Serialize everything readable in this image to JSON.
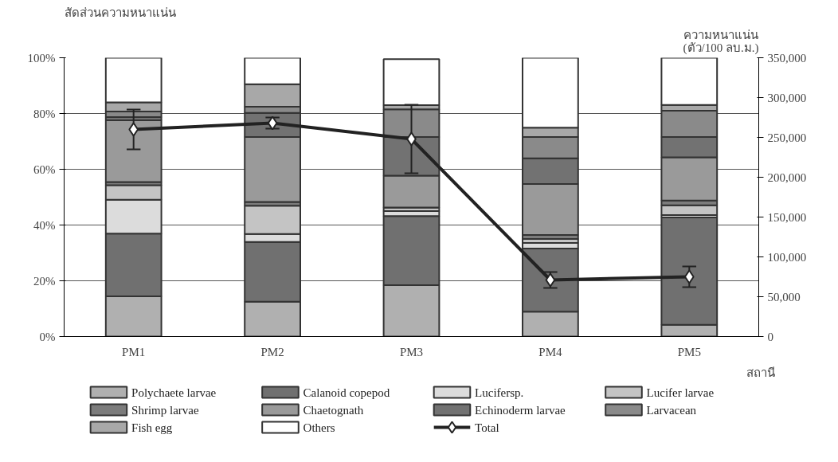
{
  "chart_data": {
    "type": "bar",
    "stacked": true,
    "categories": [
      "PM1",
      "PM2",
      "PM3",
      "PM4",
      "PM5"
    ],
    "ylabel": "สัดส่วนความหนาแน่น",
    "y2label": "ความหนาแน่น\n(ตัว/100 ลบ.ม.)",
    "xlabel": "สถานี",
    "ylim": [
      0,
      100
    ],
    "yticks": [
      {
        "value": 0,
        "label": "0%"
      },
      {
        "value": 20,
        "label": "20%"
      },
      {
        "value": 40,
        "label": "40%"
      },
      {
        "value": 60,
        "label": "60%"
      },
      {
        "value": 80,
        "label": "80%"
      },
      {
        "value": 100,
        "label": "100%"
      }
    ],
    "y2lim": [
      0,
      350000
    ],
    "y2ticks": [
      {
        "value": 0,
        "label": "0"
      },
      {
        "value": 50000,
        "label": "50,000"
      },
      {
        "value": 100000,
        "label": "100,000"
      },
      {
        "value": 150000,
        "label": "150,000"
      },
      {
        "value": 200000,
        "label": "200,000"
      },
      {
        "value": 250000,
        "label": "250,000"
      },
      {
        "value": 300000,
        "label": "300,000"
      },
      {
        "value": 350000,
        "label": "350,000"
      }
    ],
    "grid": "y",
    "legend": "bottom",
    "series": [
      {
        "name": "Polychaete larvae",
        "color": "#b0b0b0",
        "values": [
          14.4,
          12.5,
          18.4,
          8.9,
          4.2
        ]
      },
      {
        "name": "Calanoid copepod",
        "color": "#707070",
        "values": [
          22.5,
          21.4,
          24.8,
          22.7,
          38.5
        ]
      },
      {
        "name": "Lucifersp.",
        "color": "#dcdcdc",
        "values": [
          12.2,
          2.9,
          1.8,
          2.0,
          0.9
        ]
      },
      {
        "name": "Lucifer larvae",
        "color": "#c4c4c4",
        "values": [
          5.2,
          10.1,
          1.3,
          1.4,
          3.5
        ]
      },
      {
        "name": "Shrimp larvae",
        "color": "#7c7c7c",
        "values": [
          1.1,
          1.4,
          null,
          1.4,
          1.7
        ]
      },
      {
        "name": "Chaetognath",
        "color": "#9a9a9a",
        "values": [
          22.2,
          23.3,
          11.4,
          18.3,
          15.5
        ]
      },
      {
        "name": "Echinoderm larvae",
        "color": "#727272",
        "values": [
          1.1,
          8.6,
          13.9,
          9.2,
          7.3
        ]
      },
      {
        "name": "Larvacean",
        "color": "#8a8a8a",
        "values": [
          2.0,
          2.2,
          9.9,
          7.7,
          9.4
        ]
      },
      {
        "name": "Fish egg",
        "color": "#a8a8a8",
        "values": [
          3.3,
          8.1,
          1.5,
          3.3,
          2.1
        ]
      },
      {
        "name": "Others",
        "color": "#ffffff",
        "values": [
          16.0,
          9.5,
          16.5,
          25.1,
          16.9
        ]
      },
      {
        "name": "Total",
        "type": "line",
        "axis": "y2",
        "color": "#222222",
        "marker": "diamond",
        "line_style": "solid",
        "values": [
          260000,
          268000,
          248000,
          71000,
          75000
        ],
        "errors": [
          25000,
          7000,
          43000,
          10000,
          13000
        ]
      }
    ]
  }
}
